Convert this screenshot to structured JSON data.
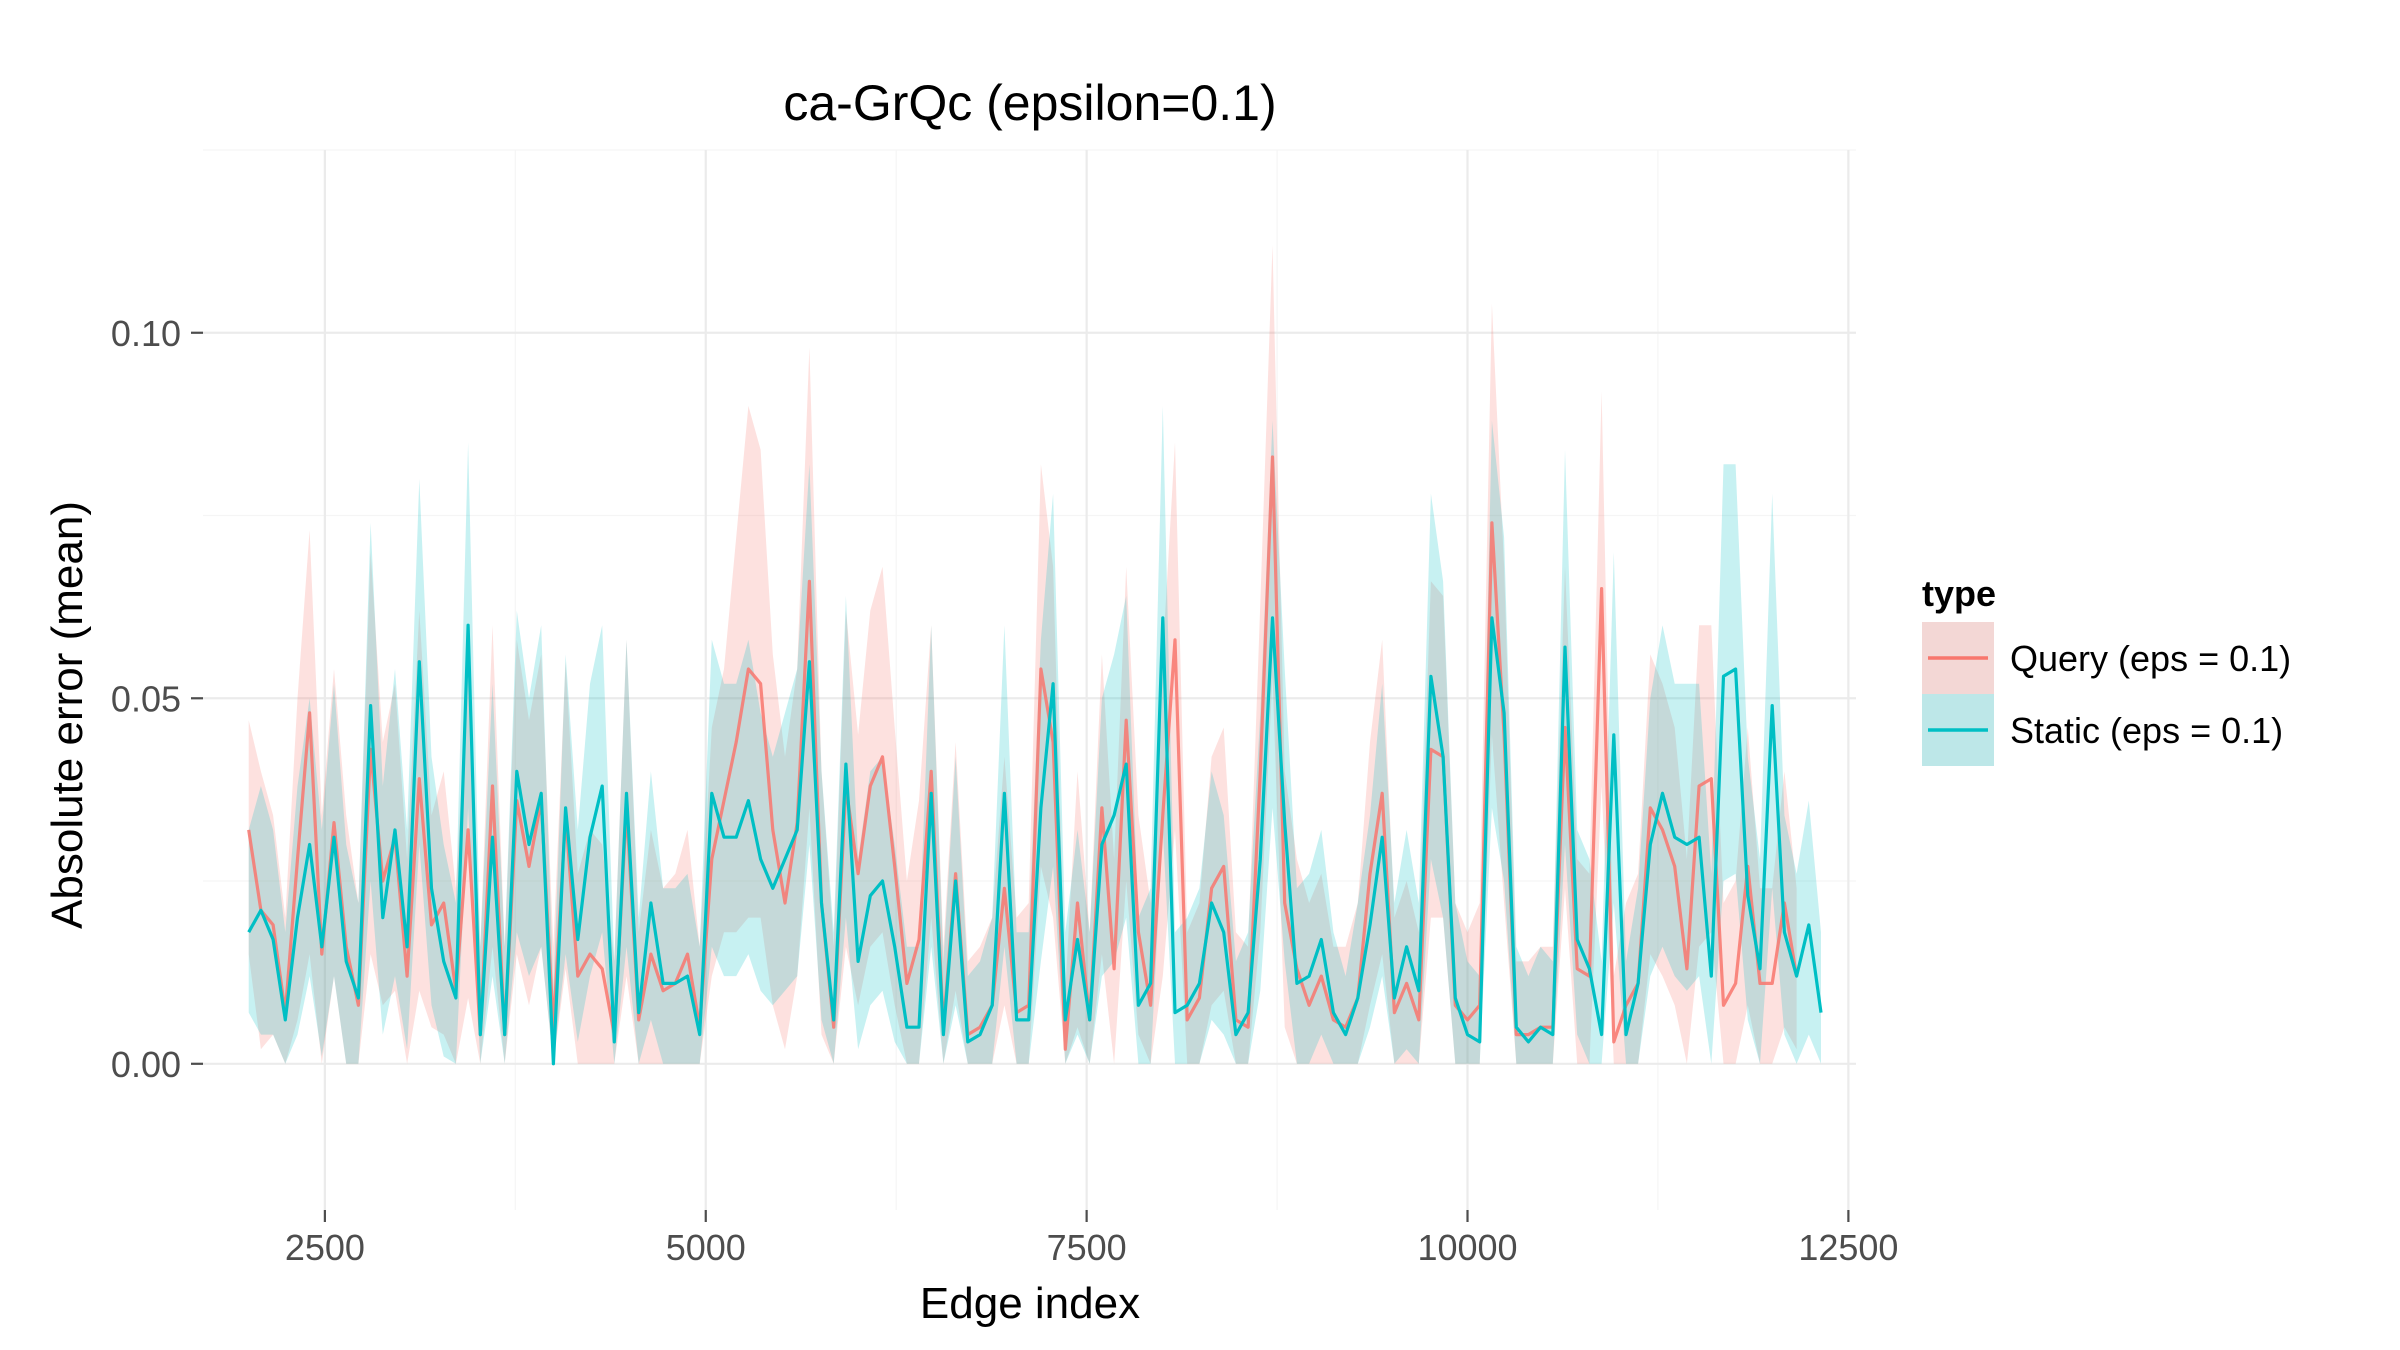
{
  "chart_data": {
    "type": "line",
    "title": "ca-GrQc (epsilon=0.1)",
    "xlabel": "Edge index",
    "ylabel": "Absolute error (mean)",
    "xlim": [
      1700,
      12550
    ],
    "ylim": [
      -0.02,
      0.125
    ],
    "x_ticks": [
      2500,
      5000,
      7500,
      10000,
      12500
    ],
    "x_tick_labels": [
      "2500",
      "5000",
      "7500",
      "10000",
      "12500"
    ],
    "y_ticks": [
      0.0,
      0.05,
      0.1
    ],
    "y_tick_labels": [
      "0.00",
      "0.05",
      "0.10"
    ],
    "grid": true,
    "legend": {
      "title": "type",
      "position": "right"
    },
    "x_start": 2000,
    "x_step": 80,
    "series": [
      {
        "name": "Query (eps = 0.1)",
        "color": "#F8766D",
        "fill_color": "#F8766D",
        "values": [
          0.032,
          0.021,
          0.019,
          0.007,
          0.028,
          0.048,
          0.015,
          0.033,
          0.016,
          0.008,
          0.043,
          0.025,
          0.031,
          0.012,
          0.039,
          0.019,
          0.022,
          0.01,
          0.032,
          0.004,
          0.038,
          0.004,
          0.036,
          0.027,
          0.036,
          0.005,
          0.034,
          0.012,
          0.015,
          0.013,
          0.004,
          0.035,
          0.006,
          0.015,
          0.01,
          0.011,
          0.015,
          0.005,
          0.028,
          0.036,
          0.044,
          0.054,
          0.052,
          0.032,
          0.022,
          0.033,
          0.066,
          0.022,
          0.005,
          0.038,
          0.026,
          0.038,
          0.042,
          0.027,
          0.011,
          0.017,
          0.04,
          0.005,
          0.026,
          0.004,
          0.005,
          0.008,
          0.024,
          0.007,
          0.008,
          0.054,
          0.044,
          0.002,
          0.022,
          0.006,
          0.035,
          0.013,
          0.047,
          0.018,
          0.008,
          0.034,
          0.058,
          0.006,
          0.009,
          0.024,
          0.027,
          0.006,
          0.005,
          0.04,
          0.083,
          0.022,
          0.013,
          0.008,
          0.012,
          0.006,
          0.005,
          0.009,
          0.026,
          0.037,
          0.007,
          0.011,
          0.006,
          0.043,
          0.042,
          0.008,
          0.006,
          0.008,
          0.074,
          0.045,
          0.004,
          0.004,
          0.005,
          0.005,
          0.046,
          0.013,
          0.012,
          0.065,
          0.003,
          0.008,
          0.011,
          0.035,
          0.032,
          0.027,
          0.013,
          0.038,
          0.039,
          0.008,
          0.011,
          0.027,
          0.011,
          0.011,
          0.022,
          0.012
        ],
        "lower": [
          0.015,
          0.002,
          0.004,
          0.0,
          0.006,
          0.015,
          0.0,
          0.012,
          0.0,
          0.0,
          0.015,
          0.008,
          0.01,
          0.0,
          0.01,
          0.005,
          0.004,
          0.0,
          0.009,
          0.0,
          0.016,
          0.0,
          0.015,
          0.008,
          0.016,
          0.0,
          0.013,
          0.0,
          0.0,
          0.0,
          0.0,
          0.012,
          0.0,
          0.0,
          0.0,
          0.0,
          0.0,
          0.0,
          0.012,
          0.018,
          0.018,
          0.02,
          0.02,
          0.008,
          0.002,
          0.012,
          0.035,
          0.004,
          0.0,
          0.016,
          0.008,
          0.016,
          0.018,
          0.008,
          0.0,
          0.0,
          0.02,
          0.0,
          0.01,
          0.0,
          0.0,
          0.0,
          0.008,
          0.0,
          0.0,
          0.027,
          0.02,
          0.0,
          0.005,
          0.0,
          0.015,
          0.0,
          0.025,
          0.004,
          0.0,
          0.012,
          0.032,
          0.0,
          0.0,
          0.008,
          0.01,
          0.0,
          0.0,
          0.018,
          0.053,
          0.005,
          0.0,
          0.0,
          0.0,
          0.0,
          0.0,
          0.0,
          0.008,
          0.015,
          0.0,
          0.0,
          0.0,
          0.02,
          0.02,
          0.0,
          0.0,
          0.0,
          0.045,
          0.022,
          0.0,
          0.0,
          0.0,
          0.0,
          0.024,
          0.0,
          0.0,
          0.038,
          0.0,
          0.0,
          0.0,
          0.015,
          0.012,
          0.008,
          0.0,
          0.016,
          0.018,
          0.0,
          0.0,
          0.008,
          0.0,
          0.0,
          0.005,
          0.002
        ],
        "upper": [
          0.047,
          0.04,
          0.034,
          0.02,
          0.05,
          0.073,
          0.034,
          0.054,
          0.034,
          0.022,
          0.07,
          0.044,
          0.052,
          0.028,
          0.062,
          0.034,
          0.04,
          0.024,
          0.055,
          0.016,
          0.06,
          0.016,
          0.058,
          0.047,
          0.056,
          0.016,
          0.055,
          0.026,
          0.032,
          0.03,
          0.014,
          0.058,
          0.018,
          0.032,
          0.024,
          0.026,
          0.032,
          0.016,
          0.046,
          0.054,
          0.072,
          0.09,
          0.084,
          0.056,
          0.042,
          0.054,
          0.098,
          0.04,
          0.016,
          0.062,
          0.045,
          0.062,
          0.068,
          0.046,
          0.025,
          0.036,
          0.06,
          0.016,
          0.044,
          0.014,
          0.016,
          0.02,
          0.042,
          0.02,
          0.022,
          0.082,
          0.068,
          0.01,
          0.04,
          0.018,
          0.056,
          0.028,
          0.068,
          0.034,
          0.022,
          0.056,
          0.085,
          0.018,
          0.022,
          0.042,
          0.046,
          0.018,
          0.016,
          0.063,
          0.112,
          0.04,
          0.028,
          0.022,
          0.026,
          0.016,
          0.016,
          0.022,
          0.044,
          0.058,
          0.02,
          0.025,
          0.018,
          0.066,
          0.064,
          0.022,
          0.018,
          0.022,
          0.104,
          0.068,
          0.014,
          0.014,
          0.016,
          0.016,
          0.068,
          0.028,
          0.026,
          0.092,
          0.012,
          0.022,
          0.026,
          0.056,
          0.052,
          0.046,
          0.028,
          0.06,
          0.06,
          0.022,
          0.025,
          0.046,
          0.024,
          0.024,
          0.04,
          0.024
        ]
      },
      {
        "name": "Static (eps = 0.1)",
        "color": "#00BFC4",
        "fill_color": "#00BFC4",
        "values": [
          0.018,
          0.021,
          0.017,
          0.006,
          0.02,
          0.03,
          0.016,
          0.031,
          0.014,
          0.009,
          0.049,
          0.02,
          0.032,
          0.016,
          0.055,
          0.024,
          0.014,
          0.009,
          0.06,
          0.004,
          0.031,
          0.004,
          0.04,
          0.03,
          0.037,
          0.0,
          0.035,
          0.017,
          0.031,
          0.038,
          0.003,
          0.037,
          0.007,
          0.022,
          0.011,
          0.011,
          0.012,
          0.004,
          0.037,
          0.031,
          0.031,
          0.036,
          0.028,
          0.024,
          0.028,
          0.032,
          0.055,
          0.022,
          0.006,
          0.041,
          0.014,
          0.023,
          0.025,
          0.016,
          0.005,
          0.005,
          0.037,
          0.004,
          0.025,
          0.003,
          0.004,
          0.008,
          0.037,
          0.006,
          0.006,
          0.035,
          0.052,
          0.006,
          0.017,
          0.006,
          0.03,
          0.034,
          0.041,
          0.008,
          0.011,
          0.061,
          0.007,
          0.008,
          0.011,
          0.022,
          0.018,
          0.004,
          0.007,
          0.028,
          0.061,
          0.033,
          0.011,
          0.012,
          0.017,
          0.007,
          0.004,
          0.009,
          0.019,
          0.031,
          0.009,
          0.016,
          0.01,
          0.053,
          0.042,
          0.009,
          0.004,
          0.003,
          0.061,
          0.048,
          0.005,
          0.003,
          0.005,
          0.004,
          0.057,
          0.017,
          0.013,
          0.004,
          0.045,
          0.004,
          0.011,
          0.03,
          0.037,
          0.031,
          0.03,
          0.031,
          0.012,
          0.053,
          0.054,
          0.023,
          0.013,
          0.049,
          0.018,
          0.012,
          0.019,
          0.007
        ],
        "lower": [
          0.007,
          0.004,
          0.004,
          0.0,
          0.004,
          0.012,
          0.001,
          0.012,
          0.0,
          0.0,
          0.025,
          0.004,
          0.012,
          0.002,
          0.03,
          0.008,
          0.001,
          0.0,
          0.035,
          0.0,
          0.012,
          0.0,
          0.018,
          0.012,
          0.016,
          0.0,
          0.015,
          0.003,
          0.012,
          0.018,
          0.0,
          0.016,
          0.0,
          0.006,
          0.0,
          0.0,
          0.0,
          0.0,
          0.016,
          0.012,
          0.012,
          0.015,
          0.01,
          0.008,
          0.01,
          0.012,
          0.03,
          0.006,
          0.0,
          0.02,
          0.002,
          0.008,
          0.01,
          0.003,
          0.0,
          0.0,
          0.016,
          0.0,
          0.008,
          0.0,
          0.0,
          0.0,
          0.016,
          0.0,
          0.0,
          0.014,
          0.027,
          0.0,
          0.004,
          0.0,
          0.012,
          0.014,
          0.02,
          0.0,
          0.0,
          0.032,
          0.0,
          0.0,
          0.0,
          0.006,
          0.004,
          0.0,
          0.0,
          0.01,
          0.035,
          0.014,
          0.0,
          0.0,
          0.004,
          0.0,
          0.0,
          0.0,
          0.005,
          0.012,
          0.0,
          0.002,
          0.0,
          0.028,
          0.02,
          0.0,
          0.0,
          0.0,
          0.035,
          0.025,
          0.0,
          0.0,
          0.0,
          0.0,
          0.03,
          0.004,
          0.0,
          0.0,
          0.022,
          0.0,
          0.0,
          0.012,
          0.016,
          0.012,
          0.01,
          0.012,
          0.0,
          0.025,
          0.026,
          0.006,
          0.0,
          0.024,
          0.004,
          0.0,
          0.004,
          0.0
        ],
        "upper": [
          0.032,
          0.038,
          0.032,
          0.018,
          0.038,
          0.05,
          0.032,
          0.052,
          0.03,
          0.022,
          0.074,
          0.038,
          0.054,
          0.032,
          0.08,
          0.042,
          0.03,
          0.022,
          0.085,
          0.016,
          0.052,
          0.016,
          0.062,
          0.05,
          0.06,
          0.01,
          0.056,
          0.032,
          0.052,
          0.06,
          0.014,
          0.058,
          0.02,
          0.04,
          0.024,
          0.024,
          0.026,
          0.016,
          0.058,
          0.052,
          0.052,
          0.058,
          0.048,
          0.042,
          0.048,
          0.054,
          0.082,
          0.04,
          0.018,
          0.064,
          0.028,
          0.04,
          0.042,
          0.03,
          0.016,
          0.016,
          0.06,
          0.014,
          0.042,
          0.012,
          0.014,
          0.02,
          0.06,
          0.018,
          0.018,
          0.058,
          0.078,
          0.018,
          0.032,
          0.018,
          0.05,
          0.056,
          0.064,
          0.02,
          0.024,
          0.09,
          0.018,
          0.02,
          0.024,
          0.04,
          0.034,
          0.014,
          0.018,
          0.048,
          0.088,
          0.054,
          0.024,
          0.026,
          0.032,
          0.018,
          0.012,
          0.022,
          0.034,
          0.052,
          0.022,
          0.032,
          0.022,
          0.078,
          0.066,
          0.022,
          0.014,
          0.012,
          0.088,
          0.072,
          0.016,
          0.012,
          0.016,
          0.014,
          0.084,
          0.032,
          0.028,
          0.014,
          0.07,
          0.014,
          0.024,
          0.05,
          0.06,
          0.052,
          0.052,
          0.052,
          0.026,
          0.082,
          0.082,
          0.042,
          0.028,
          0.078,
          0.034,
          0.026,
          0.036,
          0.018
        ]
      }
    ]
  }
}
